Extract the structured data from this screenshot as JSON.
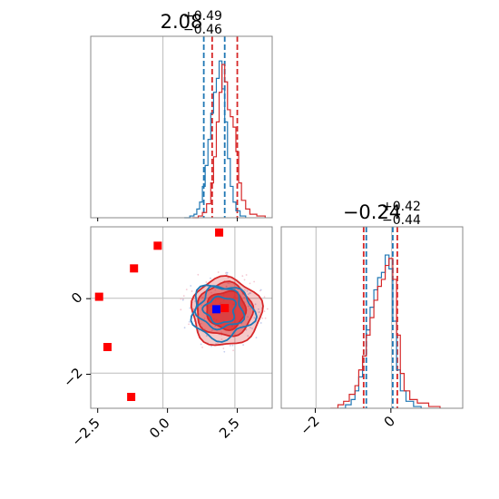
{
  "chart_data": {
    "type": "corner",
    "colors": {
      "blue": "#1f77b4",
      "red": "#d62728",
      "marker_red": "#ff0000",
      "marker_blue": "#0000ff",
      "truth_line": "#bbbbbb"
    },
    "parameters": [
      {
        "title_main": "2.08",
        "title_plus": "+0.49",
        "title_minus": "−0.46"
      },
      {
        "title_main": "−0.24",
        "title_plus": "+0.42",
        "title_minus": "−0.44"
      }
    ],
    "axis_ranges": {
      "x": [
        -2.75,
        3.75
      ],
      "y": [
        -2.9,
        1.9
      ]
    },
    "truth_values": {
      "x": 0.0,
      "y": 0.0
    },
    "x_ticks": [
      {
        "value": -2.5,
        "label": "−2.5"
      },
      {
        "value": 0.0,
        "label": "0.0"
      },
      {
        "value": 2.5,
        "label": "2.5"
      }
    ],
    "y_ticks": [
      {
        "value": 0,
        "label": "0"
      },
      {
        "value": -2,
        "label": "−2"
      }
    ],
    "hist_x_ticks": [
      {
        "value": -2,
        "label": "−2"
      },
      {
        "value": 0,
        "label": "0"
      }
    ],
    "hist_x_range": [
      -2.9,
      1.9
    ],
    "quantile_lines_param1": {
      "blue": [
        1.3,
        2.05
      ],
      "red": [
        1.6,
        2.5
      ]
    },
    "quantile_lines_param2": {
      "blue": [
        -0.65,
        0.05
      ],
      "red": [
        -0.72,
        0.17
      ]
    },
    "hist_param1_blue": [
      [
        0.6,
        0
      ],
      [
        0.8,
        0.01
      ],
      [
        0.95,
        0.02
      ],
      [
        1.05,
        0.05
      ],
      [
        1.15,
        0.09
      ],
      [
        1.25,
        0.18
      ],
      [
        1.35,
        0.3
      ],
      [
        1.45,
        0.45
      ],
      [
        1.55,
        0.6
      ],
      [
        1.65,
        0.72
      ],
      [
        1.75,
        0.8
      ],
      [
        1.85,
        0.9
      ],
      [
        1.95,
        0.74
      ],
      [
        2.05,
        0.55
      ],
      [
        2.15,
        0.34
      ],
      [
        2.25,
        0.18
      ],
      [
        2.35,
        0.09
      ],
      [
        2.45,
        0.04
      ],
      [
        2.6,
        0.01
      ],
      [
        2.8,
        0
      ]
    ],
    "hist_param1_red": [
      [
        0.9,
        0
      ],
      [
        1.1,
        0.01
      ],
      [
        1.25,
        0.03
      ],
      [
        1.4,
        0.08
      ],
      [
        1.55,
        0.2
      ],
      [
        1.65,
        0.35
      ],
      [
        1.75,
        0.55
      ],
      [
        1.85,
        0.72
      ],
      [
        1.95,
        0.88
      ],
      [
        2.05,
        0.78
      ],
      [
        2.15,
        0.62
      ],
      [
        2.25,
        0.58
      ],
      [
        2.35,
        0.52
      ],
      [
        2.45,
        0.38
      ],
      [
        2.55,
        0.2
      ],
      [
        2.65,
        0.1
      ],
      [
        2.8,
        0.05
      ],
      [
        2.95,
        0.02
      ],
      [
        3.2,
        0.01
      ],
      [
        3.5,
        0
      ]
    ],
    "hist_param2_blue": [
      [
        -1.35,
        0
      ],
      [
        -1.2,
        0.02
      ],
      [
        -1.05,
        0.05
      ],
      [
        -0.95,
        0.1
      ],
      [
        -0.85,
        0.18
      ],
      [
        -0.75,
        0.3
      ],
      [
        -0.65,
        0.45
      ],
      [
        -0.55,
        0.58
      ],
      [
        -0.45,
        0.68
      ],
      [
        -0.35,
        0.75
      ],
      [
        -0.25,
        0.78
      ],
      [
        -0.15,
        0.88
      ],
      [
        -0.05,
        0.8
      ],
      [
        0.05,
        0.5
      ],
      [
        0.15,
        0.22
      ],
      [
        0.25,
        0.1
      ],
      [
        0.4,
        0.04
      ],
      [
        0.6,
        0.01
      ],
      [
        0.8,
        0
      ]
    ],
    "hist_param2_red": [
      [
        -1.6,
        0
      ],
      [
        -1.4,
        0.02
      ],
      [
        -1.25,
        0.04
      ],
      [
        -1.1,
        0.08
      ],
      [
        -0.95,
        0.13
      ],
      [
        -0.85,
        0.22
      ],
      [
        -0.75,
        0.3
      ],
      [
        -0.65,
        0.42
      ],
      [
        -0.55,
        0.52
      ],
      [
        -0.45,
        0.62
      ],
      [
        -0.35,
        0.7
      ],
      [
        -0.25,
        0.74
      ],
      [
        -0.15,
        0.82
      ],
      [
        -0.05,
        0.86
      ],
      [
        0.05,
        0.74
      ],
      [
        0.15,
        0.42
      ],
      [
        0.25,
        0.2
      ],
      [
        0.35,
        0.1
      ],
      [
        0.5,
        0.05
      ],
      [
        0.7,
        0.03
      ],
      [
        1.0,
        0.01
      ],
      [
        1.3,
        0
      ]
    ],
    "red_markers": [
      {
        "x": 1.85,
        "y": 1.75
      },
      {
        "x": -0.35,
        "y": 1.4
      },
      {
        "x": -1.2,
        "y": 0.8
      },
      {
        "x": -2.45,
        "y": 0.05
      },
      {
        "x": -2.15,
        "y": -1.28
      },
      {
        "x": -1.3,
        "y": -2.6
      },
      {
        "x": 2.05,
        "y": -0.25
      }
    ],
    "blue_marker": {
      "x": 1.75,
      "y": -0.28
    },
    "contours_red": [
      {
        "cx": 2.1,
        "cy": -0.35,
        "rx": 1.25,
        "ry": 0.9,
        "fill": 0.25
      },
      {
        "cx": 2.05,
        "cy": -0.3,
        "rx": 1.0,
        "ry": 0.7,
        "fill": 0.45
      },
      {
        "cx": 2.1,
        "cy": -0.3,
        "rx": 0.7,
        "ry": 0.5,
        "fill": 0.7
      }
    ],
    "contours_blue": [
      {
        "cx": 1.95,
        "cy": -0.35,
        "rx": 1.1,
        "ry": 0.7
      },
      {
        "cx": 1.9,
        "cy": -0.25,
        "rx": 0.8,
        "ry": 0.55
      },
      {
        "cx": 1.9,
        "cy": -0.3,
        "rx": 0.55,
        "ry": 0.35
      }
    ]
  }
}
